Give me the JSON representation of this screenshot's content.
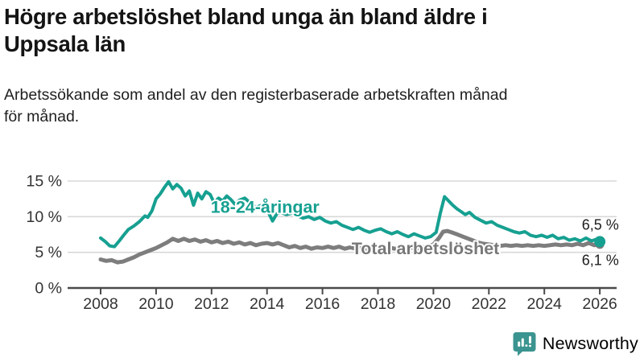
{
  "header": {
    "title_lines": [
      "Högre arbetslöshet bland unga än bland äldre i",
      "Uppsala län"
    ],
    "subtitle_lines": [
      "Arbetssökande som andel av den registerbaserade arbetskraften månad",
      "för månad."
    ]
  },
  "colors": {
    "series_teal": "#16a091",
    "series_gray": "#7d7d7d",
    "label_gray": "#787878",
    "text_dark": "#1c1c1c",
    "tick_text": "#333333",
    "grid": "#d8d8d8",
    "axis": "#4a4a4a",
    "logo_teal": "#3b9490"
  },
  "chart_data": {
    "type": "line",
    "title": "Högre arbetslöshet bland unga än bland äldre i Uppsala län",
    "subtitle": "Arbetssökande som andel av den registerbaserade arbetskraften månad för månad.",
    "xlabel": "",
    "ylabel": "%",
    "xlim": [
      2007.4,
      2026.6
    ],
    "ylim": [
      0,
      15
    ],
    "grid": "horizontal",
    "legend": "inline-labels",
    "x_ticks": [
      2008,
      2010,
      2012,
      2014,
      2016,
      2018,
      2020,
      2022,
      2024,
      2026
    ],
    "x_tick_labels": [
      "2008",
      "2010",
      "2012",
      "2014",
      "2016",
      "2018",
      "2020",
      "2022",
      "2024",
      "2026"
    ],
    "y_ticks": [
      {
        "value": 0,
        "label": "0 %"
      },
      {
        "value": 5,
        "label": "5 %"
      },
      {
        "value": 10,
        "label": "10 %"
      },
      {
        "value": 15,
        "label": "15 %"
      }
    ],
    "series": [
      {
        "name": "Total arbetslöshet",
        "color_key": "series_gray",
        "stroke_width": 5,
        "end_dot_radius": 5.5,
        "end_label": "6,1 %",
        "values": [
          [
            2008.0,
            4.0
          ],
          [
            2008.2,
            3.8
          ],
          [
            2008.4,
            3.9
          ],
          [
            2008.6,
            3.6
          ],
          [
            2008.8,
            3.7
          ],
          [
            2009.0,
            4.0
          ],
          [
            2009.2,
            4.3
          ],
          [
            2009.4,
            4.7
          ],
          [
            2009.6,
            5.0
          ],
          [
            2009.8,
            5.3
          ],
          [
            2010.0,
            5.6
          ],
          [
            2010.2,
            6.0
          ],
          [
            2010.4,
            6.4
          ],
          [
            2010.6,
            6.9
          ],
          [
            2010.8,
            6.6
          ],
          [
            2011.0,
            6.9
          ],
          [
            2011.2,
            6.6
          ],
          [
            2011.4,
            6.8
          ],
          [
            2011.6,
            6.5
          ],
          [
            2011.8,
            6.7
          ],
          [
            2012.0,
            6.4
          ],
          [
            2012.2,
            6.6
          ],
          [
            2012.4,
            6.3
          ],
          [
            2012.6,
            6.5
          ],
          [
            2012.8,
            6.2
          ],
          [
            2013.0,
            6.4
          ],
          [
            2013.2,
            6.1
          ],
          [
            2013.4,
            6.3
          ],
          [
            2013.6,
            6.0
          ],
          [
            2013.8,
            6.2
          ],
          [
            2014.0,
            6.3
          ],
          [
            2014.2,
            6.1
          ],
          [
            2014.4,
            6.3
          ],
          [
            2014.6,
            6.0
          ],
          [
            2014.8,
            5.7
          ],
          [
            2015.0,
            5.9
          ],
          [
            2015.2,
            5.6
          ],
          [
            2015.4,
            5.8
          ],
          [
            2015.6,
            5.5
          ],
          [
            2015.8,
            5.7
          ],
          [
            2016.0,
            5.6
          ],
          [
            2016.2,
            5.8
          ],
          [
            2016.4,
            5.6
          ],
          [
            2016.6,
            5.8
          ],
          [
            2016.8,
            5.5
          ],
          [
            2017.0,
            5.7
          ],
          [
            2017.2,
            5.5
          ],
          [
            2017.4,
            5.7
          ],
          [
            2017.6,
            5.4
          ],
          [
            2017.8,
            5.6
          ],
          [
            2018.0,
            5.7
          ],
          [
            2018.2,
            5.5
          ],
          [
            2018.4,
            5.7
          ],
          [
            2018.6,
            5.5
          ],
          [
            2018.8,
            5.6
          ],
          [
            2019.0,
            5.5
          ],
          [
            2019.2,
            5.7
          ],
          [
            2019.4,
            5.5
          ],
          [
            2019.6,
            5.7
          ],
          [
            2019.8,
            5.8
          ],
          [
            2020.0,
            6.1
          ],
          [
            2020.2,
            7.0
          ],
          [
            2020.35,
            7.9
          ],
          [
            2020.5,
            8.0
          ],
          [
            2020.65,
            7.8
          ],
          [
            2020.8,
            7.6
          ],
          [
            2021.0,
            7.3
          ],
          [
            2021.2,
            7.0
          ],
          [
            2021.4,
            6.7
          ],
          [
            2021.6,
            6.4
          ],
          [
            2021.8,
            6.2
          ],
          [
            2022.0,
            6.1
          ],
          [
            2022.2,
            6.0
          ],
          [
            2022.4,
            5.9
          ],
          [
            2022.6,
            6.0
          ],
          [
            2022.8,
            5.9
          ],
          [
            2023.0,
            6.0
          ],
          [
            2023.2,
            5.9
          ],
          [
            2023.4,
            6.0
          ],
          [
            2023.6,
            5.9
          ],
          [
            2023.8,
            6.0
          ],
          [
            2024.0,
            5.9
          ],
          [
            2024.2,
            6.0
          ],
          [
            2024.4,
            6.1
          ],
          [
            2024.6,
            6.0
          ],
          [
            2024.8,
            6.1
          ],
          [
            2025.0,
            6.0
          ],
          [
            2025.2,
            6.2
          ],
          [
            2025.4,
            6.0
          ],
          [
            2025.6,
            6.3
          ],
          [
            2025.8,
            6.0
          ],
          [
            2026.0,
            6.1
          ]
        ]
      },
      {
        "name": "18-24-åringar",
        "color_key": "series_teal",
        "stroke_width": 4,
        "end_dot_radius": 7,
        "end_label": "6,5 %",
        "values": [
          [
            2008.0,
            7.0
          ],
          [
            2008.17,
            6.5
          ],
          [
            2008.33,
            5.9
          ],
          [
            2008.5,
            5.8
          ],
          [
            2008.67,
            6.6
          ],
          [
            2008.83,
            7.4
          ],
          [
            2009.0,
            8.2
          ],
          [
            2009.2,
            8.7
          ],
          [
            2009.4,
            9.3
          ],
          [
            2009.6,
            10.1
          ],
          [
            2009.7,
            9.9
          ],
          [
            2009.85,
            10.8
          ],
          [
            2010.0,
            12.5
          ],
          [
            2010.15,
            13.2
          ],
          [
            2010.3,
            14.1
          ],
          [
            2010.45,
            14.9
          ],
          [
            2010.6,
            13.9
          ],
          [
            2010.75,
            14.5
          ],
          [
            2010.9,
            14.0
          ],
          [
            2011.05,
            12.9
          ],
          [
            2011.2,
            13.6
          ],
          [
            2011.35,
            11.6
          ],
          [
            2011.5,
            13.3
          ],
          [
            2011.65,
            12.5
          ],
          [
            2011.8,
            13.5
          ],
          [
            2011.95,
            13.1
          ],
          [
            2012.1,
            11.9
          ],
          [
            2012.25,
            12.6
          ],
          [
            2012.4,
            12.2
          ],
          [
            2012.55,
            12.9
          ],
          [
            2012.7,
            12.4
          ],
          [
            2012.85,
            11.7
          ],
          [
            2013.0,
            12.3
          ],
          [
            2013.2,
            12.6
          ],
          [
            2013.4,
            11.9
          ],
          [
            2013.6,
            11.3
          ],
          [
            2013.8,
            11.6
          ],
          [
            2014.0,
            11.0
          ],
          [
            2014.2,
            9.4
          ],
          [
            2014.35,
            10.4
          ],
          [
            2014.5,
            10.6
          ],
          [
            2014.7,
            10.3
          ],
          [
            2014.9,
            10.5
          ],
          [
            2015.1,
            10.1
          ],
          [
            2015.3,
            9.8
          ],
          [
            2015.5,
            10.0
          ],
          [
            2015.7,
            9.6
          ],
          [
            2015.9,
            9.9
          ],
          [
            2016.1,
            9.4
          ],
          [
            2016.3,
            9.1
          ],
          [
            2016.5,
            9.3
          ],
          [
            2016.7,
            8.8
          ],
          [
            2016.9,
            8.5
          ],
          [
            2017.1,
            8.2
          ],
          [
            2017.3,
            8.5
          ],
          [
            2017.5,
            8.1
          ],
          [
            2017.7,
            7.8
          ],
          [
            2017.9,
            8.1
          ],
          [
            2018.1,
            8.3
          ],
          [
            2018.3,
            7.9
          ],
          [
            2018.5,
            7.6
          ],
          [
            2018.7,
            7.9
          ],
          [
            2018.9,
            7.5
          ],
          [
            2019.1,
            7.2
          ],
          [
            2019.3,
            7.6
          ],
          [
            2019.5,
            7.3
          ],
          [
            2019.7,
            7.0
          ],
          [
            2019.9,
            7.2
          ],
          [
            2020.1,
            7.8
          ],
          [
            2020.25,
            10.5
          ],
          [
            2020.4,
            12.8
          ],
          [
            2020.55,
            12.2
          ],
          [
            2020.7,
            11.6
          ],
          [
            2020.85,
            11.1
          ],
          [
            2021.0,
            10.7
          ],
          [
            2021.15,
            10.3
          ],
          [
            2021.3,
            10.6
          ],
          [
            2021.5,
            9.9
          ],
          [
            2021.7,
            9.5
          ],
          [
            2021.9,
            9.1
          ],
          [
            2022.1,
            9.3
          ],
          [
            2022.3,
            8.8
          ],
          [
            2022.5,
            8.5
          ],
          [
            2022.7,
            8.2
          ],
          [
            2022.9,
            7.9
          ],
          [
            2023.1,
            7.7
          ],
          [
            2023.3,
            7.9
          ],
          [
            2023.5,
            7.4
          ],
          [
            2023.7,
            7.2
          ],
          [
            2023.9,
            7.4
          ],
          [
            2024.1,
            7.1
          ],
          [
            2024.3,
            7.4
          ],
          [
            2024.5,
            6.9
          ],
          [
            2024.7,
            7.1
          ],
          [
            2024.9,
            6.7
          ],
          [
            2025.1,
            6.9
          ],
          [
            2025.3,
            6.6
          ],
          [
            2025.5,
            7.0
          ],
          [
            2025.7,
            6.6
          ],
          [
            2025.85,
            6.8
          ],
          [
            2026.0,
            6.5
          ]
        ]
      }
    ],
    "annotations": [
      {
        "text": "18-24-åringar",
        "year": 2011.97,
        "pct": 10.55,
        "color_key": "series_teal",
        "bold": true,
        "size": 21.5
      },
      {
        "text": "Total arbetslöshet",
        "year": 2017.05,
        "pct": 4.72,
        "color_key": "label_gray",
        "bold": true,
        "size": 21.5
      },
      {
        "text": "6,5 %",
        "year": 2025.35,
        "pct": 8.15,
        "color_key": "text_dark",
        "bold": false,
        "size": 18
      },
      {
        "text": "6,1 %",
        "year": 2025.35,
        "pct": 3.2,
        "color_key": "text_dark",
        "bold": false,
        "size": 18
      }
    ]
  },
  "footer": {
    "brand": "Newsworthy",
    "logo_icon": "bar-chart-speech-bubble"
  }
}
